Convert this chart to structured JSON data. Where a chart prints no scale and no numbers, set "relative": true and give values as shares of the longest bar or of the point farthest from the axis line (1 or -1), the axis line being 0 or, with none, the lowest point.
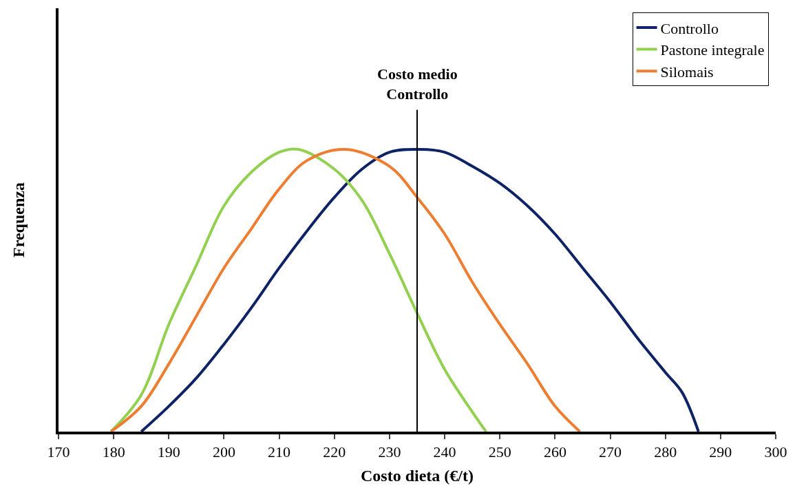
{
  "chart_data": {
    "type": "line",
    "relative": true,
    "xlabel": "Costo dieta (€/t)",
    "ylabel": "Frequenza",
    "xlim": [
      170,
      300
    ],
    "xticks": [
      170,
      180,
      190,
      200,
      210,
      220,
      230,
      240,
      250,
      260,
      270,
      280,
      290,
      300
    ],
    "tick_labels": "x",
    "grid": false,
    "legend": "top right",
    "marker": "none",
    "line_style": "solid",
    "series": [
      {
        "name": "Controllo",
        "color": "#0d2366",
        "x": [
          185,
          190,
          195,
          200,
          205,
          210,
          215,
          220,
          225,
          230,
          235.5,
          240,
          245,
          250,
          255,
          260,
          265,
          270,
          275,
          280,
          283,
          286
        ],
        "values": [
          0,
          0.09,
          0.19,
          0.31,
          0.44,
          0.58,
          0.71,
          0.83,
          0.93,
          0.99,
          1,
          0.99,
          0.94,
          0.88,
          0.8,
          0.7,
          0.58,
          0.46,
          0.33,
          0.21,
          0.14,
          0
        ]
      },
      {
        "name": "Pastone integrale",
        "color": "#92d050",
        "x": [
          179.5,
          185,
          190,
          195,
          200,
          205,
          210,
          213.5,
          220,
          225,
          230,
          235,
          240,
          245,
          247.5
        ],
        "values": [
          0,
          0.13,
          0.38,
          0.59,
          0.8,
          0.92,
          0.99,
          1,
          0.93,
          0.82,
          0.63,
          0.42,
          0.22,
          0.07,
          0
        ]
      },
      {
        "name": "Silomais",
        "color": "#ed7d31",
        "x": [
          179.5,
          185,
          190,
          195,
          200,
          205,
          210,
          215,
          222,
          230,
          235,
          240,
          245,
          250,
          255,
          260,
          264.5
        ],
        "values": [
          0,
          0.09,
          0.24,
          0.41,
          0.58,
          0.72,
          0.86,
          0.96,
          1,
          0.94,
          0.83,
          0.7,
          0.53,
          0.38,
          0.24,
          0.09,
          0
        ]
      }
    ],
    "ref_lines": [
      {
        "axis": "x",
        "value": 235,
        "label": "Costo medio\nControllo",
        "color": "#000000",
        "line_style": "solid"
      }
    ]
  }
}
